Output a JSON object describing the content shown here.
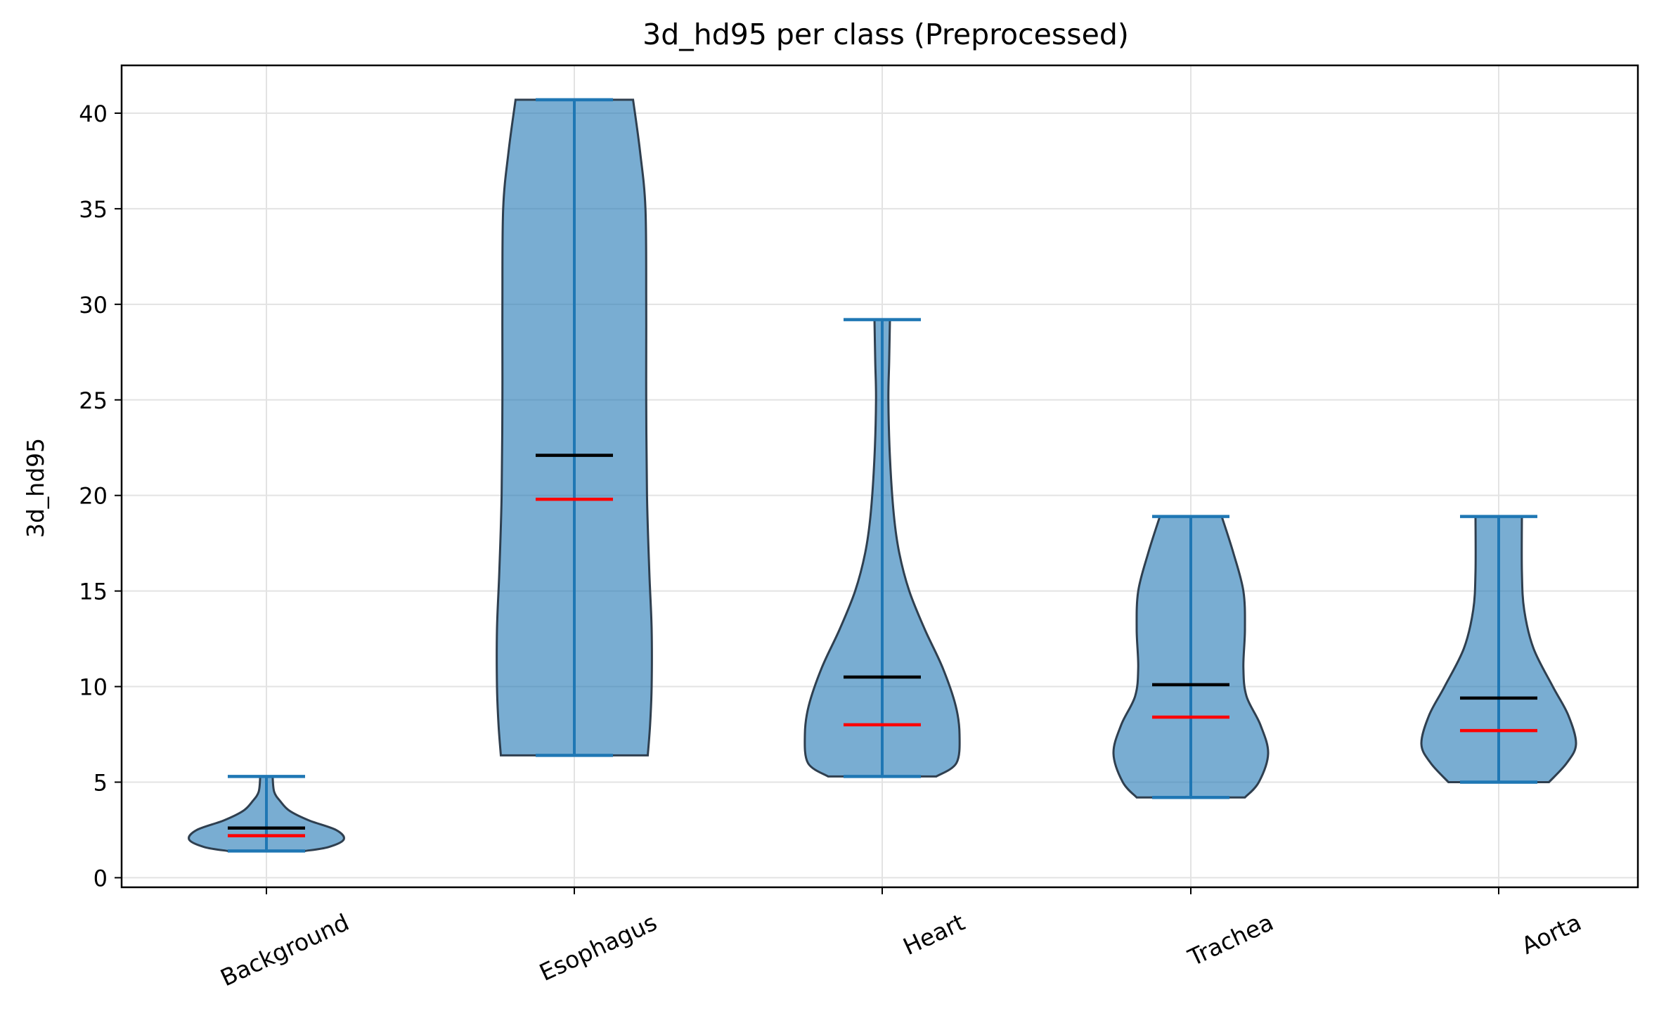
{
  "chart_data": {
    "type": "violin",
    "title": "3d_hd95 per class (Preprocessed)",
    "xlabel": "",
    "ylabel": "3d_hd95",
    "ylim": [
      -0.5,
      42.5
    ],
    "yticks": [
      0,
      5,
      10,
      15,
      20,
      25,
      30,
      35,
      40
    ],
    "grid": true,
    "categories": [
      "Background",
      "Esophagus",
      "Heart",
      "Trachea",
      "Aorta"
    ],
    "stats": [
      {
        "min": 1.4,
        "max": 5.3,
        "mean": 2.6,
        "median": 2.2
      },
      {
        "min": 6.4,
        "max": 40.7,
        "mean": 22.1,
        "median": 19.8
      },
      {
        "min": 5.3,
        "max": 29.2,
        "mean": 10.5,
        "median": 8.0
      },
      {
        "min": 4.2,
        "max": 18.9,
        "mean": 10.1,
        "median": 8.4
      },
      {
        "min": 5.0,
        "max": 18.9,
        "mean": 9.4,
        "median": 7.7
      }
    ],
    "density_profiles": [
      [
        [
          1.4,
          0.5
        ],
        [
          1.6,
          0.8
        ],
        [
          2.0,
          1.0
        ],
        [
          2.5,
          0.9
        ],
        [
          3.0,
          0.55
        ],
        [
          3.5,
          0.3
        ],
        [
          4.0,
          0.18
        ],
        [
          4.5,
          0.1
        ],
        [
          5.3,
          0.08
        ]
      ],
      [
        [
          6.4,
          0.95
        ],
        [
          8.0,
          0.98
        ],
        [
          10.0,
          1.0
        ],
        [
          13.0,
          1.0
        ],
        [
          16.0,
          0.97
        ],
        [
          20.0,
          0.94
        ],
        [
          25.0,
          0.93
        ],
        [
          30.0,
          0.93
        ],
        [
          35.0,
          0.92
        ],
        [
          38.0,
          0.85
        ],
        [
          40.7,
          0.76
        ]
      ],
      [
        [
          5.3,
          0.7
        ],
        [
          6.0,
          0.96
        ],
        [
          7.5,
          1.0
        ],
        [
          9.0,
          0.95
        ],
        [
          11.0,
          0.78
        ],
        [
          13.0,
          0.55
        ],
        [
          15.0,
          0.35
        ],
        [
          17.0,
          0.22
        ],
        [
          19.0,
          0.15
        ],
        [
          22.0,
          0.1
        ],
        [
          25.0,
          0.08
        ],
        [
          27.0,
          0.09
        ],
        [
          29.2,
          0.1
        ]
      ],
      [
        [
          4.2,
          0.7
        ],
        [
          5.0,
          0.88
        ],
        [
          6.5,
          1.0
        ],
        [
          8.0,
          0.9
        ],
        [
          9.5,
          0.72
        ],
        [
          11.0,
          0.68
        ],
        [
          13.0,
          0.7
        ],
        [
          15.0,
          0.68
        ],
        [
          17.0,
          0.55
        ],
        [
          18.9,
          0.4
        ]
      ],
      [
        [
          5.0,
          0.65
        ],
        [
          6.0,
          0.88
        ],
        [
          7.0,
          1.0
        ],
        [
          8.5,
          0.9
        ],
        [
          10.0,
          0.7
        ],
        [
          12.0,
          0.45
        ],
        [
          14.0,
          0.33
        ],
        [
          16.0,
          0.3
        ],
        [
          18.9,
          0.3
        ]
      ]
    ],
    "colors": {
      "body_fill": "#1f77b4",
      "body_edge": "#2f3f4f",
      "whisker": "#1f77b4",
      "mean_line": "#000000",
      "median_line": "#ff0000"
    }
  }
}
